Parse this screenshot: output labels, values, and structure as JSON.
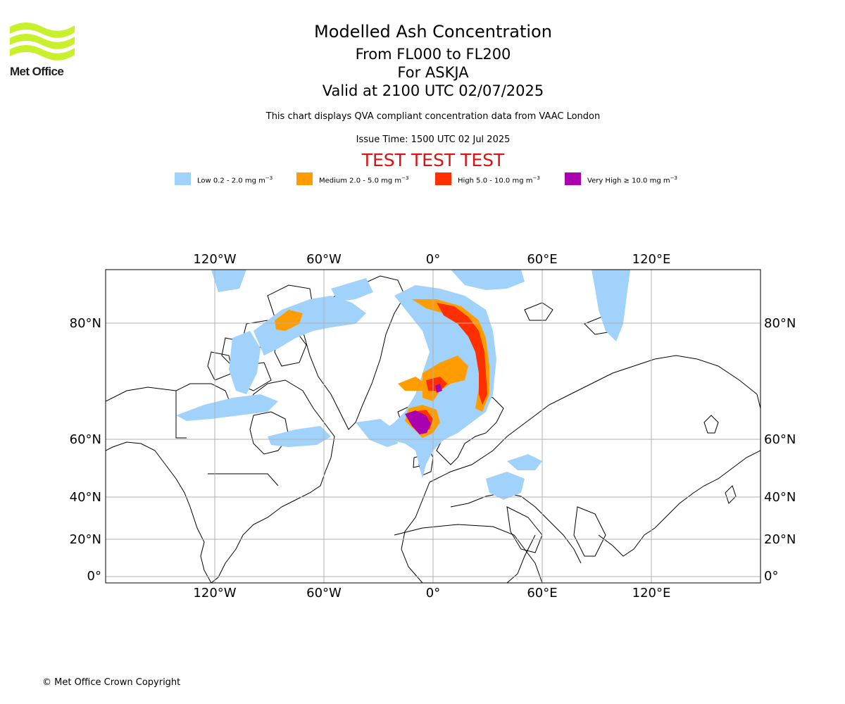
{
  "logo": {
    "brand": "Met Office"
  },
  "title": {
    "main": "Modelled Ash Concentration",
    "levels": "From FL000 to FL200",
    "volcano": "For ASKJA",
    "valid": "Valid at 2100 UTC 02/07/2025",
    "description": "This chart displays QVA compliant concentration data from VAAC London",
    "issue_time": "Issue Time: 1500 UTC 02 Jul 2025",
    "test_banner": "TEST TEST TEST"
  },
  "legend": [
    {
      "label": "Low 0.2 - 2.0 mg m",
      "unit_exp": "−3",
      "color": "#a0d2fb"
    },
    {
      "label": "Medium 2.0 - 5.0 mg m",
      "unit_exp": "−3",
      "color": "#ff9d00"
    },
    {
      "label": "High 5.0 - 10.0 mg m",
      "unit_exp": "−3",
      "color": "#ff2f00"
    },
    {
      "label": "Very High  ≥  10.0 mg m",
      "unit_exp": "−3",
      "color": "#a900b0"
    }
  ],
  "map": {
    "lon_ticks": [
      "120°W",
      "60°W",
      "0°",
      "60°E",
      "120°E"
    ],
    "lat_ticks": [
      "80°N",
      "60°N",
      "40°N",
      "20°N",
      "0°"
    ],
    "lon_values": [
      -120,
      -60,
      0,
      60,
      120
    ],
    "lat_values": [
      80,
      60,
      40,
      20,
      0
    ],
    "lon_range": [
      -180,
      180
    ],
    "lat_range": [
      -1,
      90
    ],
    "projection": "polar-stretched lat/lon",
    "grid": true
  },
  "footer": {
    "copyright": "© Met Office Crown Copyright"
  }
}
